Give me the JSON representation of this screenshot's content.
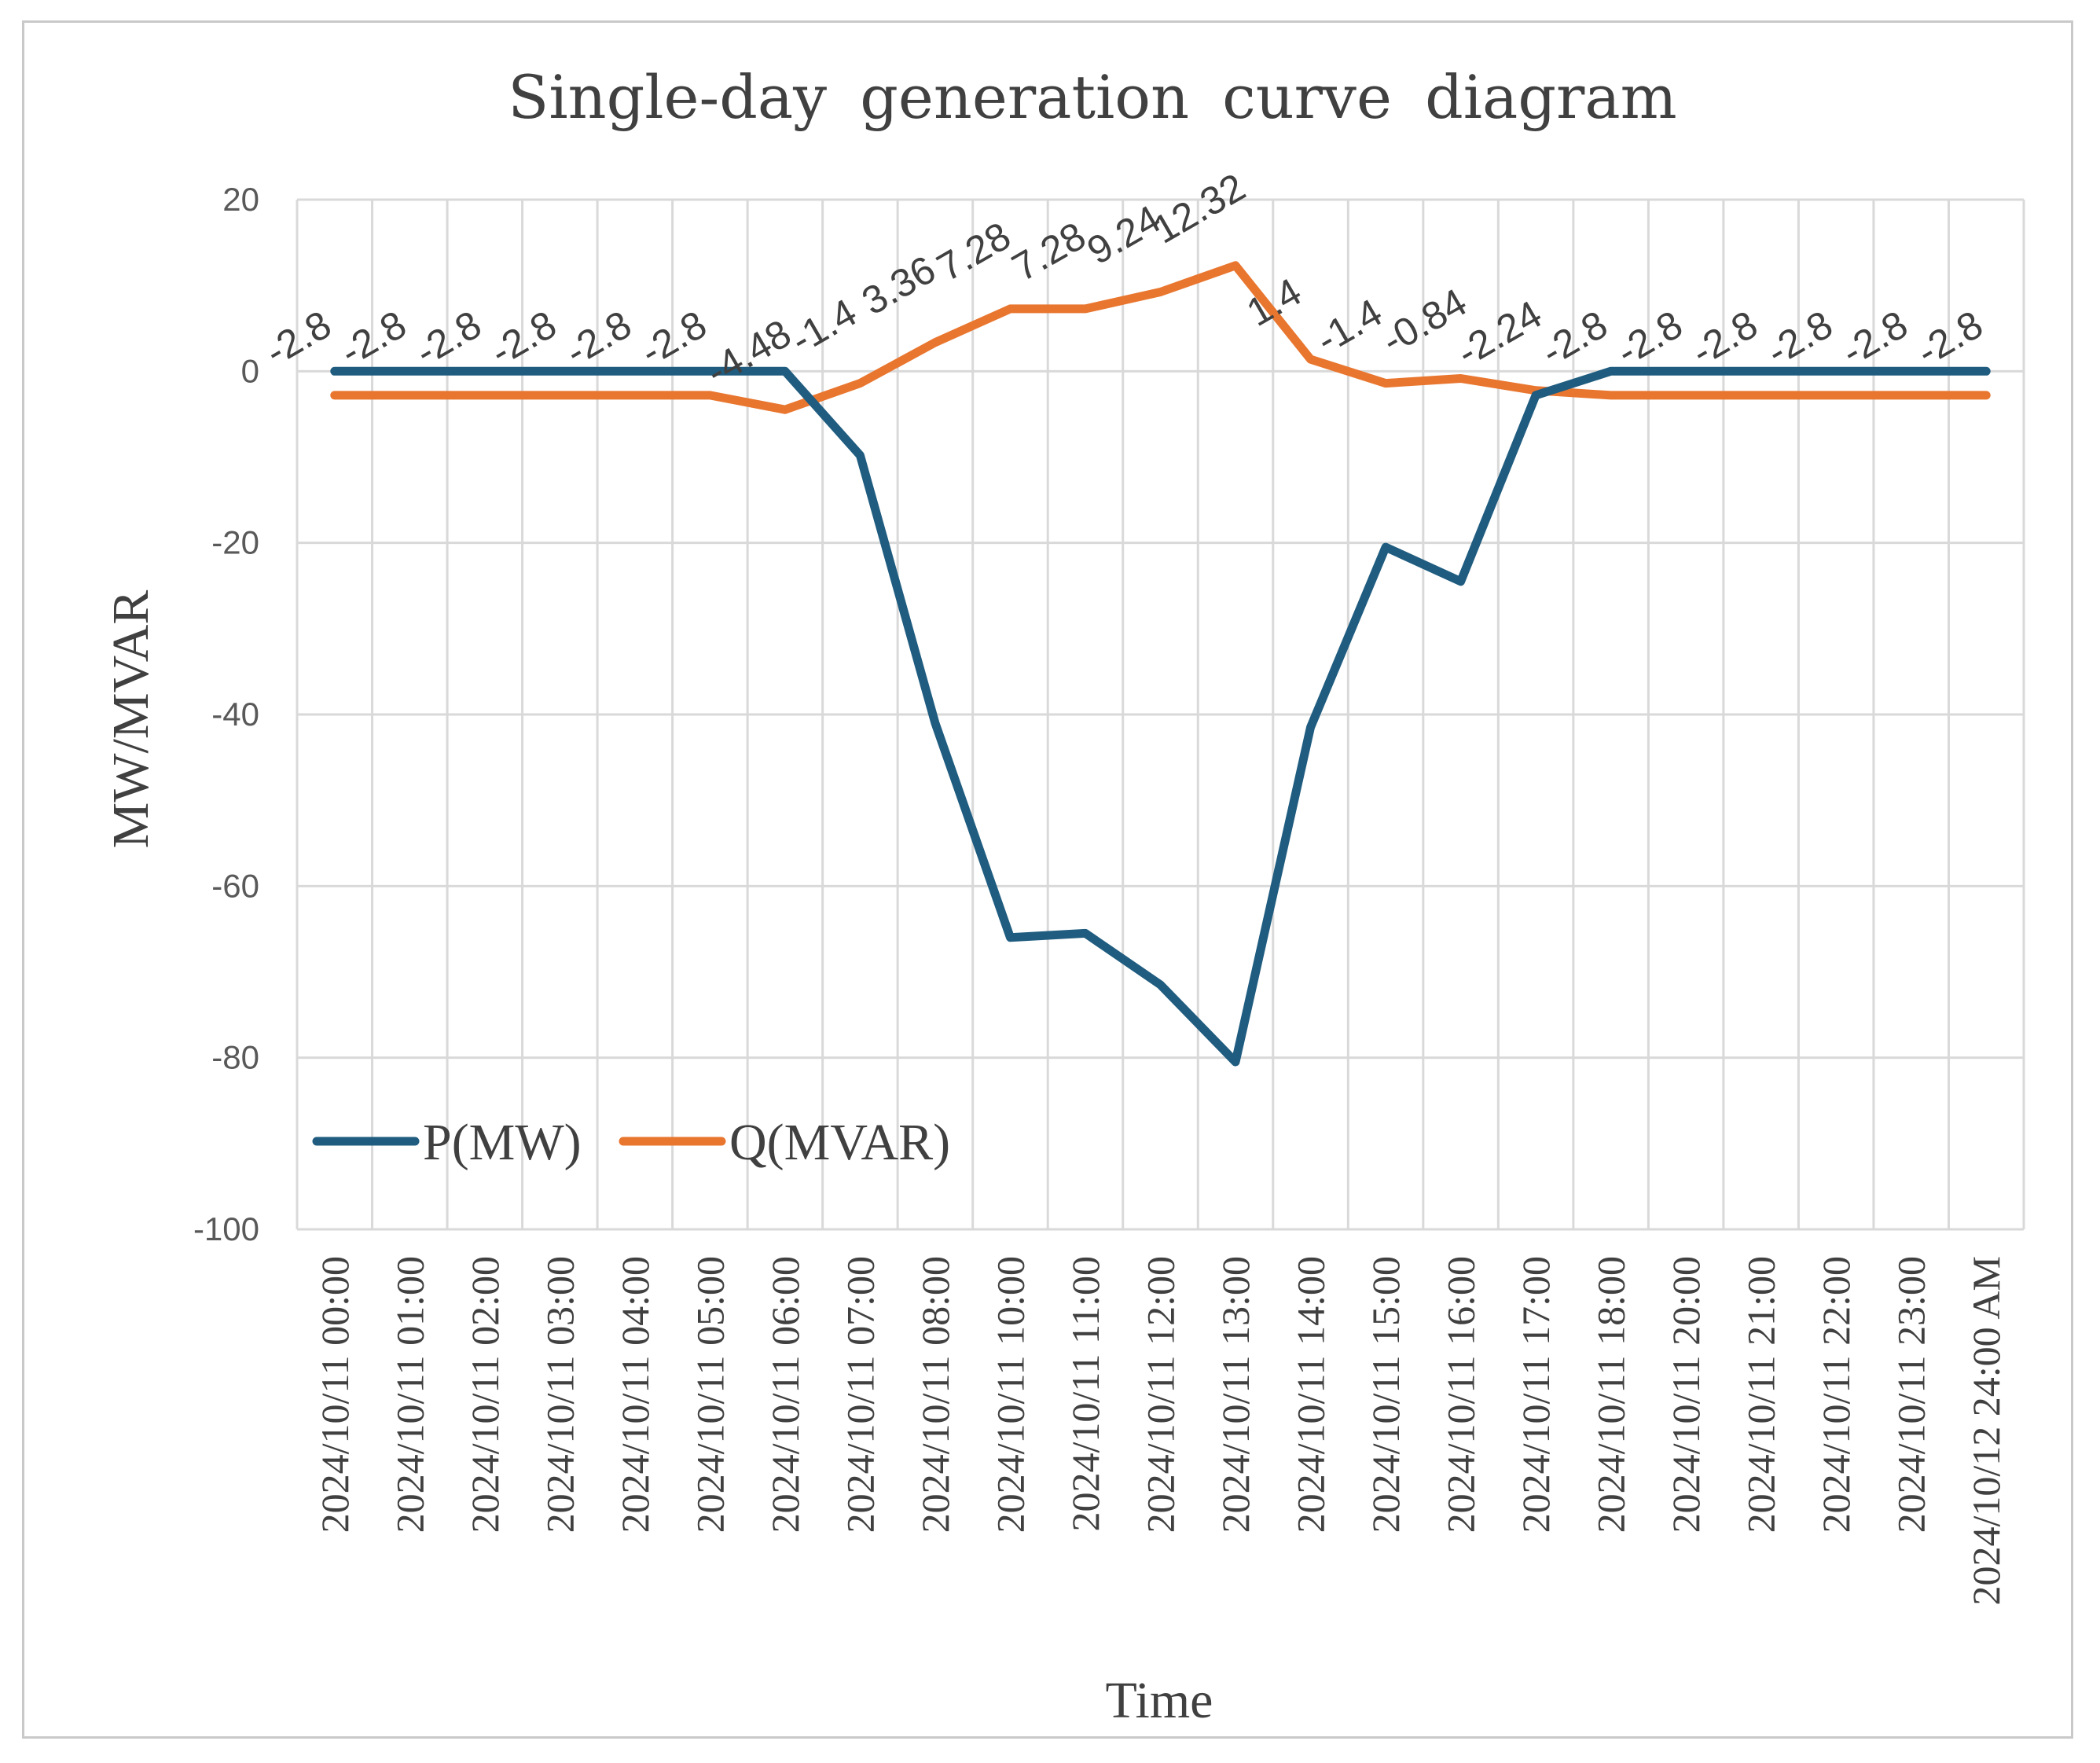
{
  "chart_data": {
    "type": "line",
    "title": "Single-day generation curve diagram",
    "xlabel": "Time",
    "ylabel": "MW/MVAR",
    "ylim": [
      -100,
      20
    ],
    "yticks": [
      20,
      0,
      -20,
      -40,
      -60,
      -80,
      -100
    ],
    "grid": true,
    "legend_position": "bottom-left",
    "categories": [
      "2024/10/11 00:00",
      "2024/10/11 01:00",
      "2024/10/11 02:00",
      "2024/10/11 03:00",
      "2024/10/11 04:00",
      "2024/10/11 05:00",
      "2024/10/11 06:00",
      "2024/10/11 07:00",
      "2024/10/11 08:00",
      "2024/10/11 10:00",
      "2024/10/11 11:00",
      "2024/10/11 12:00",
      "2024/10/11 13:00",
      "2024/10/11 14:00",
      "2024/10/11 15:00",
      "2024/10/11 16:00",
      "2024/10/11 17:00",
      "2024/10/11 18:00",
      "2024/10/11 20:00",
      "2024/10/11 21:00",
      "2024/10/11 22:00",
      "2024/10/11 23:00",
      "2024/10/12  24:00 AM"
    ],
    "series": [
      {
        "name": "P(MW)",
        "color": "#1f5c7f",
        "values": [
          0,
          0,
          0,
          0,
          0,
          0,
          0,
          -9.8,
          -41,
          -66,
          -65.5,
          -71.5,
          -80.5,
          -41.5,
          -20.5,
          -24.5,
          -2.8,
          0,
          0,
          0,
          0,
          0,
          0
        ]
      },
      {
        "name": "Q(MVAR)",
        "color": "#e9762f",
        "values": [
          -2.8,
          -2.8,
          -2.8,
          -2.8,
          -2.8,
          -2.8,
          -4.48,
          -1.4,
          3.36,
          7.28,
          7.28,
          9.24,
          12.32,
          1.4,
          -1.4,
          -0.84,
          -2.24,
          -2.8,
          -2.8,
          -2.8,
          -2.8,
          -2.8,
          -2.8
        ],
        "data_labels": [
          "-2.8",
          "-2.8",
          "-2.8",
          "-2.8",
          "-2.8",
          "-2.8",
          "-4.48",
          "-1.4",
          "3.36",
          "7.28",
          "7.28",
          "9.24",
          "12.32",
          "1.4",
          "-1.4",
          "-0.84",
          "-2.24",
          "-2.8",
          "-2.8",
          "-2.8",
          "-2.8",
          "-2.8",
          "-2.8"
        ]
      }
    ]
  }
}
